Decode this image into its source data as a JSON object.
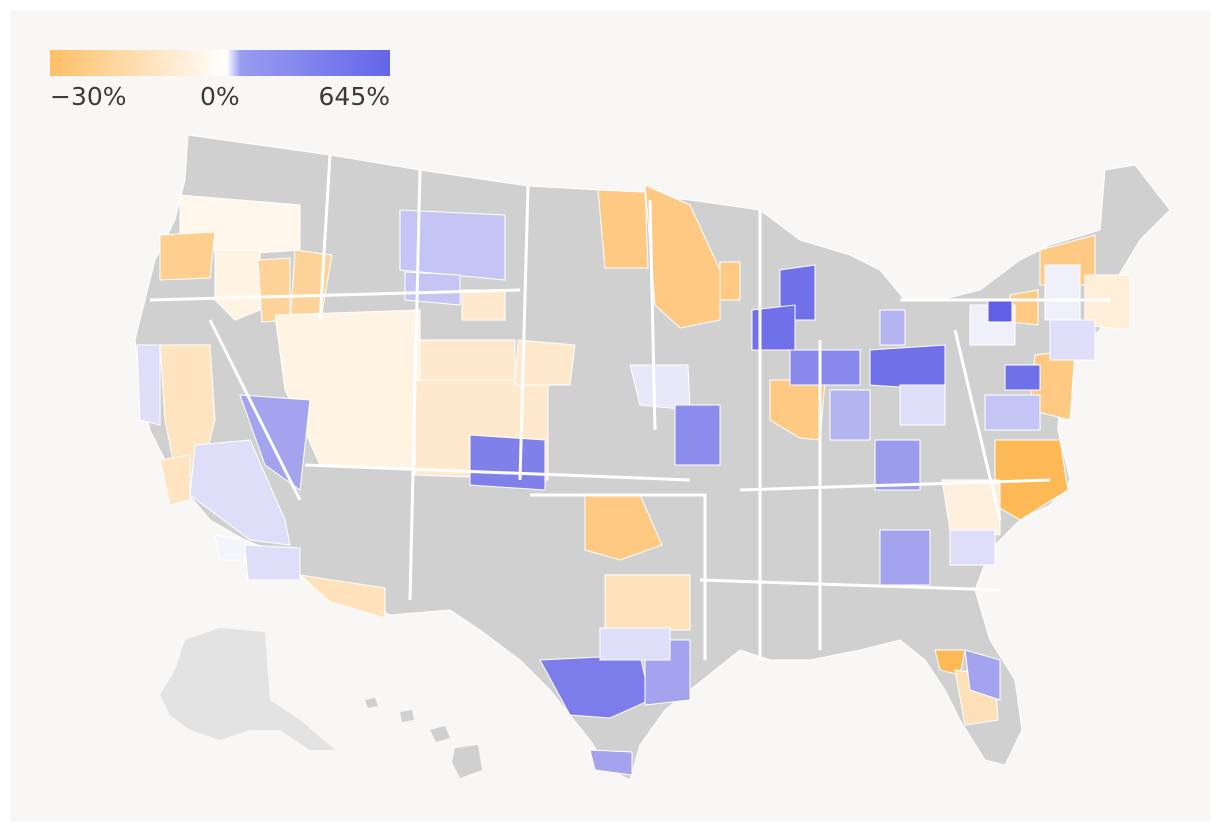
{
  "legend": {
    "min_label": "−30%",
    "mid_label": "0%",
    "max_label": "645%",
    "colors": {
      "negative": "#fdbf66",
      "zero": "#ffffff",
      "positive": "#6366e8"
    }
  },
  "map": {
    "background": "#f8f7f5",
    "no_data_color": "#d0d0d0",
    "inactive_region_color": "#e3e3e3",
    "border_color": "#ffffff"
  }
}
